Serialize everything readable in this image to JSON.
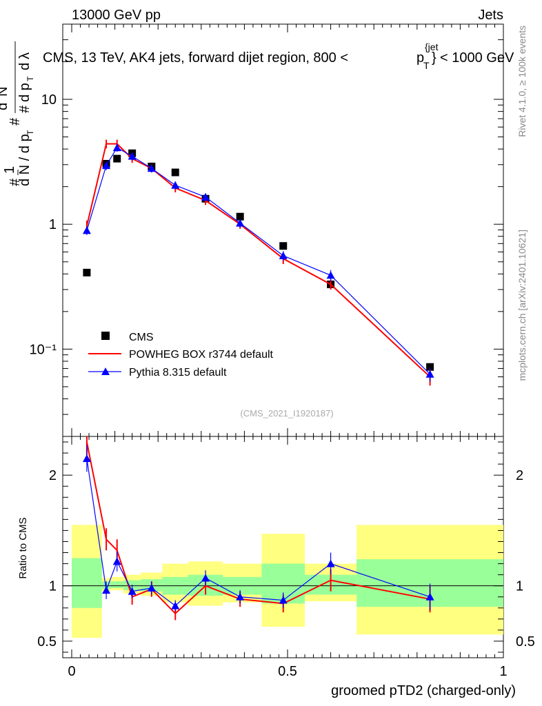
{
  "header": {
    "energy": "13000 GeV pp",
    "category": "Jets"
  },
  "side_labels": {
    "rivet": "Rivet 4.1.0, ≥ 100k events",
    "mcplots": "mcplots.cern.ch [arXiv:2401.10621]"
  },
  "watermark": "(CMS_2021_I1920187)",
  "chart_data": {
    "type": "line",
    "title": "CMS, 13 TeV, AK4 jets, forward dijet region, 800 < p_T^{jet} < 1000 GeV",
    "title_parts": {
      "pre": "CMS, 13 TeV, AK4 jets, forward dijet region, 800 <",
      "p": "p",
      "sub": "T",
      "sup": "{jet",
      "close": "}",
      "post": "< 1000 GeV"
    },
    "xlabel": "groomed pTD2 (charged-only)",
    "ylabel_main": "1/(dN/dpT) d²N/(dpT dλ)",
    "ylabel_ratio": "Ratio to CMS",
    "xlim": [
      0,
      1
    ],
    "ylim_main": [
      0.02,
      40
    ],
    "ylim_ratio": [
      0.35,
      2.35
    ],
    "x_ticks": [
      "0",
      "0.5",
      "1"
    ],
    "y_ticks_main": [
      "10⁻¹",
      "1",
      "10"
    ],
    "y_ticks_ratio": [
      "0.5",
      "1",
      "2"
    ],
    "legend_position": "lower-left",
    "series": [
      {
        "name": "CMS",
        "color": "#000000",
        "marker": "square",
        "x": [
          0.035,
          0.08,
          0.105,
          0.14,
          0.185,
          0.24,
          0.31,
          0.39,
          0.49,
          0.6,
          0.83
        ],
        "values": [
          0.41,
          3.05,
          3.35,
          3.7,
          2.9,
          2.6,
          1.6,
          1.15,
          0.67,
          0.33,
          0.072
        ]
      },
      {
        "name": "POWHEG BOX r3744 default",
        "color": "#ff0000",
        "marker": "none",
        "x": [
          0.035,
          0.08,
          0.105,
          0.14,
          0.185,
          0.24,
          0.31,
          0.39,
          0.49,
          0.6,
          0.83
        ],
        "values": [
          0.97,
          4.4,
          4.4,
          3.35,
          2.8,
          1.95,
          1.55,
          1.0,
          0.53,
          0.33,
          0.06
        ],
        "errors": [
          0.1,
          0.35,
          0.35,
          0.25,
          0.2,
          0.15,
          0.12,
          0.08,
          0.05,
          0.03,
          0.009
        ]
      },
      {
        "name": "Pythia 8.315 default",
        "color": "#0000ff",
        "marker": "triangle",
        "x": [
          0.035,
          0.08,
          0.105,
          0.14,
          0.185,
          0.24,
          0.31,
          0.39,
          0.49,
          0.6,
          0.83
        ],
        "values": [
          0.89,
          2.95,
          4.1,
          3.5,
          2.8,
          2.05,
          1.65,
          1.02,
          0.56,
          0.39,
          0.063
        ],
        "errors": [
          0.07,
          0.25,
          0.3,
          0.25,
          0.2,
          0.15,
          0.12,
          0.08,
          0.05,
          0.04,
          0.008
        ]
      }
    ],
    "ratio_series": [
      {
        "name": "POWHEG BOX r3744 default",
        "color": "#ff0000",
        "x": [
          0.035,
          0.08,
          0.105,
          0.14,
          0.185,
          0.24,
          0.31,
          0.39,
          0.49,
          0.6,
          0.83
        ],
        "values": [
          2.3,
          1.42,
          1.32,
          0.9,
          0.97,
          0.75,
          1.0,
          0.88,
          0.84,
          1.05,
          0.88
        ],
        "errors": [
          0.12,
          0.1,
          0.1,
          0.07,
          0.07,
          0.06,
          0.08,
          0.07,
          0.08,
          0.1,
          0.12
        ]
      },
      {
        "name": "Pythia 8.315 default",
        "color": "#0000ff",
        "x": [
          0.035,
          0.08,
          0.105,
          0.14,
          0.185,
          0.24,
          0.31,
          0.39,
          0.49,
          0.6,
          0.83
        ],
        "values": [
          2.15,
          0.96,
          1.22,
          0.95,
          0.98,
          0.82,
          1.07,
          0.9,
          0.87,
          1.2,
          0.9
        ],
        "errors": [
          0.12,
          0.08,
          0.09,
          0.06,
          0.06,
          0.05,
          0.07,
          0.06,
          0.07,
          0.1,
          0.12
        ]
      }
    ],
    "uncertainty_bands": {
      "bin_edges": [
        0,
        0.07,
        0.09,
        0.12,
        0.16,
        0.21,
        0.27,
        0.35,
        0.44,
        0.54,
        0.66,
        1.0
      ],
      "data_start": 0,
      "stat_sys_low": [
        0.53,
        0.95,
        0.96,
        0.93,
        0.91,
        0.85,
        0.82,
        0.85,
        0.63,
        0.86,
        0.56
      ],
      "stat_sys_high": [
        1.55,
        1.07,
        1.08,
        1.1,
        1.12,
        1.2,
        1.22,
        1.2,
        1.47,
        1.2,
        1.55
      ],
      "stat_low": [
        0.8,
        0.97,
        0.98,
        0.96,
        0.95,
        0.92,
        0.91,
        0.92,
        0.84,
        0.92,
        0.81
      ],
      "stat_high": [
        1.25,
        1.04,
        1.04,
        1.05,
        1.06,
        1.08,
        1.1,
        1.08,
        1.2,
        1.1,
        1.24
      ],
      "stat_sys_color": "#ffff80",
      "stat_color": "#99ff99",
      "x_start": 0
    }
  }
}
